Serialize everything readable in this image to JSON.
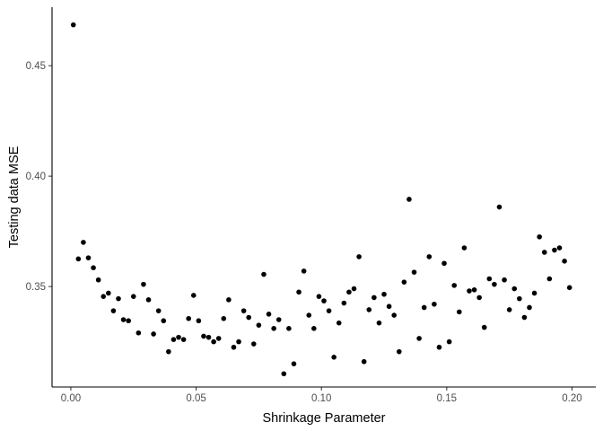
{
  "chart_data": {
    "type": "scatter",
    "title": "",
    "xlabel": "Shrinkage Parameter",
    "ylabel": "Testing data MSE",
    "xlim": [
      -0.0075,
      0.2095
    ],
    "ylim": [
      0.3045,
      0.4765
    ],
    "x_ticks": [
      0.0,
      0.05,
      0.1,
      0.15,
      0.2
    ],
    "x_tick_labels": [
      "0.00",
      "0.05",
      "0.10",
      "0.15",
      "0.20"
    ],
    "y_ticks": [
      0.35,
      0.4,
      0.45
    ],
    "y_tick_labels": [
      "0.35",
      "0.40",
      "0.45"
    ],
    "grid": false,
    "legend": "none",
    "point_color": "#000000",
    "series": [
      {
        "x": [
          0.001,
          0.003,
          0.005,
          0.007,
          0.009,
          0.011,
          0.013,
          0.015,
          0.017,
          0.019,
          0.021,
          0.023,
          0.025,
          0.027,
          0.029,
          0.031,
          0.033,
          0.035,
          0.037,
          0.039,
          0.041,
          0.043,
          0.045,
          0.047,
          0.049,
          0.051,
          0.053,
          0.055,
          0.057,
          0.059,
          0.061,
          0.063,
          0.065,
          0.067,
          0.069,
          0.071,
          0.073,
          0.075,
          0.077,
          0.079,
          0.081,
          0.083,
          0.085,
          0.087,
          0.089,
          0.091,
          0.093,
          0.095,
          0.097,
          0.099,
          0.101,
          0.103,
          0.105,
          0.107,
          0.109,
          0.111,
          0.113,
          0.115,
          0.117,
          0.119,
          0.121,
          0.123,
          0.125,
          0.127,
          0.129,
          0.131,
          0.133,
          0.135,
          0.137,
          0.139,
          0.141,
          0.143,
          0.145,
          0.147,
          0.149,
          0.151,
          0.153,
          0.155,
          0.157,
          0.159,
          0.161,
          0.163,
          0.165,
          0.167,
          0.169,
          0.171,
          0.173,
          0.175,
          0.177,
          0.179,
          0.181,
          0.183,
          0.185,
          0.187,
          0.189,
          0.191,
          0.193,
          0.195,
          0.197,
          0.199
        ],
        "y": [
          0.4685,
          0.3625,
          0.37,
          0.363,
          0.3585,
          0.353,
          0.3455,
          0.347,
          0.339,
          0.3445,
          0.335,
          0.3345,
          0.3455,
          0.329,
          0.351,
          0.344,
          0.3285,
          0.339,
          0.3345,
          0.3205,
          0.326,
          0.327,
          0.326,
          0.3355,
          0.346,
          0.3345,
          0.3275,
          0.327,
          0.325,
          0.3265,
          0.3355,
          0.344,
          0.3225,
          0.325,
          0.339,
          0.336,
          0.324,
          0.3325,
          0.3555,
          0.3375,
          0.331,
          0.335,
          0.3105,
          0.331,
          0.315,
          0.3475,
          0.357,
          0.337,
          0.331,
          0.3455,
          0.3435,
          0.339,
          0.318,
          0.3335,
          0.3425,
          0.3475,
          0.349,
          0.3635,
          0.316,
          0.3395,
          0.345,
          0.3335,
          0.3465,
          0.341,
          0.337,
          0.3205,
          0.352,
          0.3895,
          0.3565,
          0.3265,
          0.3405,
          0.3635,
          0.342,
          0.3225,
          0.3605,
          0.325,
          0.3505,
          0.3385,
          0.3675,
          0.348,
          0.3485,
          0.345,
          0.3315,
          0.3535,
          0.351,
          0.386,
          0.353,
          0.3395,
          0.349,
          0.3445,
          0.336,
          0.3405,
          0.347,
          0.3725,
          0.3655,
          0.3535,
          0.3665,
          0.3675,
          0.3615,
          0.3495
        ]
      }
    ]
  }
}
